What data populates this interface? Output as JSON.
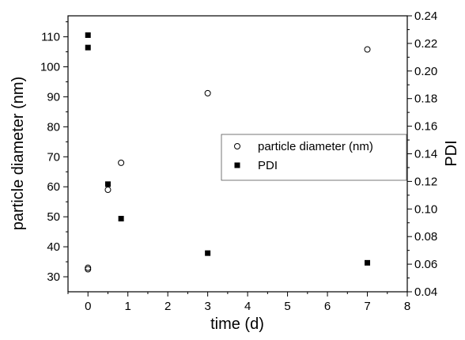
{
  "chart_data": {
    "type": "scatter",
    "xlabel": "time (d)",
    "ylabel": "particle diameter (nm)",
    "y2label": "PDI",
    "xlim": [
      -0.5,
      8
    ],
    "ylim": [
      25,
      117
    ],
    "y2lim": [
      0.04,
      0.24
    ],
    "xticks": [
      0,
      1,
      2,
      3,
      4,
      5,
      6,
      7,
      8
    ],
    "yticks": [
      30,
      40,
      50,
      60,
      70,
      80,
      90,
      100,
      110
    ],
    "y2ticks": [
      "0.04",
      "0.06",
      "0.08",
      "0.10",
      "0.12",
      "0.14",
      "0.16",
      "0.18",
      "0.20",
      "0.22",
      "0.24"
    ],
    "grid": false,
    "legend_position": "center-right",
    "series": [
      {
        "name": "particle diameter (nm)",
        "axis": "left",
        "marker": "open-circle",
        "color": "#000000",
        "x": [
          0,
          0,
          0.5,
          0.83,
          3,
          7
        ],
        "y": [
          32.5,
          33,
          59,
          68,
          91.2,
          105.8
        ]
      },
      {
        "name": "PDI",
        "axis": "right",
        "marker": "filled-square",
        "color": "#000000",
        "x": [
          0,
          0,
          0.5,
          0.83,
          3,
          7
        ],
        "y": [
          0.217,
          0.226,
          0.118,
          0.093,
          0.068,
          0.061
        ]
      }
    ]
  }
}
